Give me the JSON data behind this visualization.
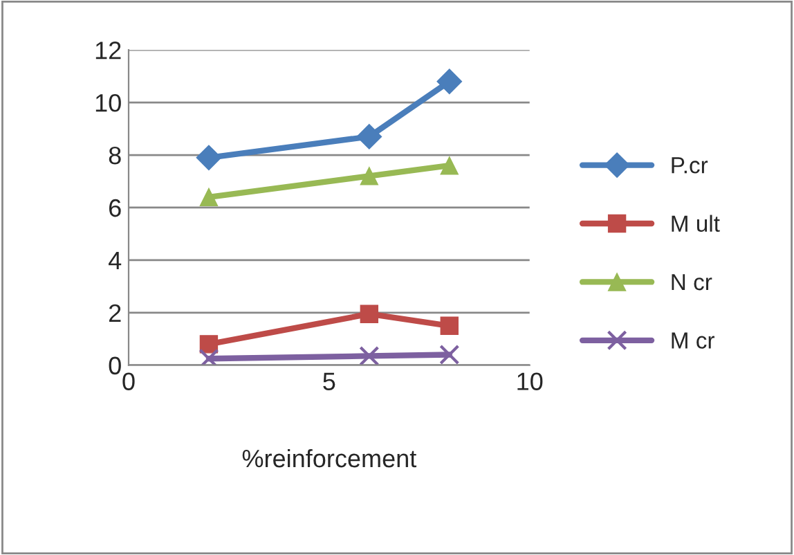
{
  "chart_data": {
    "type": "line",
    "xlabel": "%reinforcement",
    "x": [
      2,
      6,
      8
    ],
    "series": [
      {
        "name": "P.cr",
        "color": "#4a7ebb",
        "values": [
          7.9,
          8.7,
          10.8
        ],
        "marker": "diamond"
      },
      {
        "name": "M ult",
        "color": "#be4b48",
        "values": [
          0.8,
          1.95,
          1.5
        ],
        "marker": "square"
      },
      {
        "name": "N cr",
        "color": "#98b954",
        "values": [
          6.4,
          7.2,
          7.6
        ],
        "marker": "triangle"
      },
      {
        "name": "M cr",
        "color": "#7d60a0",
        "values": [
          0.25,
          0.35,
          0.4
        ],
        "marker": "cross"
      }
    ],
    "xlim": [
      0,
      10
    ],
    "xticks": [
      0,
      5,
      10
    ],
    "ylim": [
      0,
      12
    ],
    "yticks": [
      0,
      2,
      4,
      6,
      8,
      10,
      12
    ],
    "grid": "y",
    "legend": "right",
    "line_style": "solid"
  }
}
